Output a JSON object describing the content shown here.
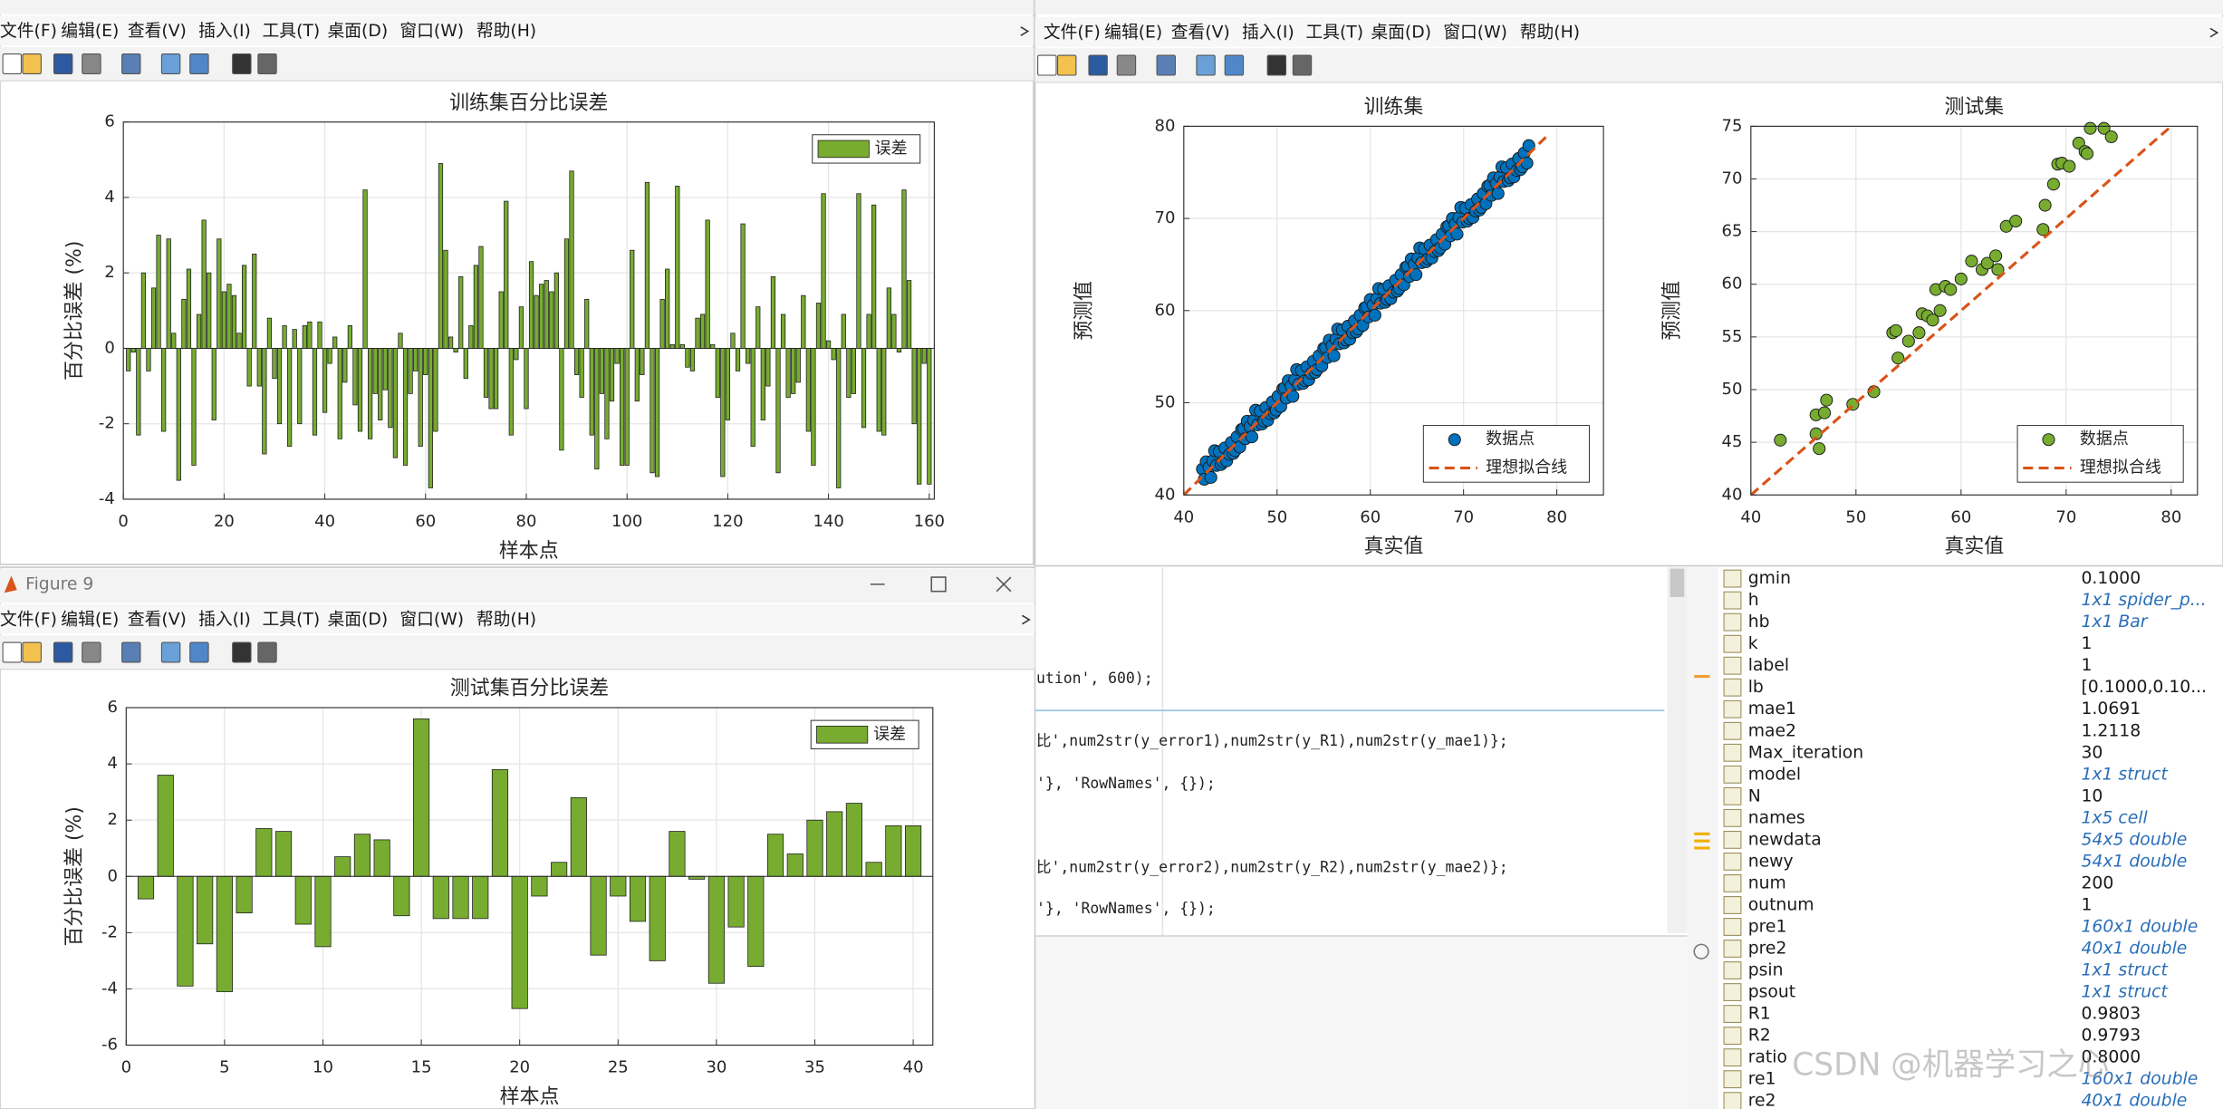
{
  "menu": [
    "文件(F)",
    "编辑(E)",
    "查看(V)",
    "插入(I)",
    "工具(T)",
    "桌面(D)",
    "窗口(W)",
    "帮助(H)"
  ],
  "figure9_title": "Figure 9",
  "chart_data": [
    {
      "type": "bar",
      "title": "训练集百分比误差",
      "xlabel": "样本点",
      "ylabel": "百分比误差 (%)",
      "x": [
        1,
        2,
        3,
        4,
        5,
        6,
        7,
        8,
        9,
        10,
        11,
        12,
        13,
        14,
        15,
        16,
        17,
        18,
        19,
        20,
        21,
        22,
        23,
        24,
        25,
        26,
        27,
        28,
        29,
        30,
        31,
        32,
        33,
        34,
        35,
        36,
        37,
        38,
        39,
        40,
        41,
        42,
        43,
        44,
        45,
        46,
        47,
        48,
        49,
        50,
        51,
        52,
        53,
        54,
        55,
        56,
        57,
        58,
        59,
        60,
        61,
        62,
        63,
        64,
        65,
        66,
        67,
        68,
        69,
        70,
        71,
        72,
        73,
        74,
        75,
        76,
        77,
        78,
        79,
        80,
        81,
        82,
        83,
        84,
        85,
        86,
        87,
        88,
        89,
        90,
        91,
        92,
        93,
        94,
        95,
        96,
        97,
        98,
        99,
        100,
        101,
        102,
        103,
        104,
        105,
        106,
        107,
        108,
        109,
        110,
        111,
        112,
        113,
        114,
        115,
        116,
        117,
        118,
        119,
        120,
        121,
        122,
        123,
        124,
        125,
        126,
        127,
        128,
        129,
        130,
        131,
        132,
        133,
        134,
        135,
        136,
        137,
        138,
        139,
        140,
        141,
        142,
        143,
        144,
        145,
        146,
        147,
        148,
        149,
        150,
        151,
        152,
        153,
        154,
        155,
        156,
        157,
        158,
        159,
        160
      ],
      "series": [
        {
          "name": "误差",
          "color": "#77AC30",
          "values": [
            -0.6,
            -0.1,
            -2.3,
            2.0,
            -0.6,
            1.6,
            3.0,
            -2.2,
            2.9,
            0.4,
            -3.5,
            1.3,
            2.1,
            -3.1,
            0.9,
            3.4,
            2.0,
            -1.9,
            2.9,
            1.5,
            1.7,
            1.4,
            0.4,
            2.2,
            -1.0,
            2.5,
            -1.0,
            -2.8,
            0.8,
            -0.8,
            -2.0,
            0.6,
            -2.6,
            0.5,
            -2.0,
            0.6,
            0.7,
            -2.3,
            0.7,
            -1.7,
            -0.4,
            0.3,
            -2.4,
            -0.9,
            0.6,
            -1.5,
            -2.2,
            4.2,
            -2.4,
            -1.2,
            -1.9,
            -1.1,
            -2.1,
            -2.9,
            0.4,
            -3.1,
            -1.2,
            -0.6,
            -2.6,
            -0.7,
            -3.7,
            -2.2,
            4.9,
            2.6,
            0.3,
            -0.1,
            1.9,
            -0.8,
            0.6,
            2.2,
            2.7,
            -1.3,
            -1.6,
            -1.6,
            1.5,
            3.9,
            -2.3,
            -0.3,
            1.1,
            -1.6,
            2.3,
            1.4,
            1.7,
            1.8,
            1.5,
            2.0,
            -2.7,
            2.9,
            4.7,
            -0.7,
            -1.3,
            1.3,
            -2.3,
            -3.2,
            -1.2,
            -2.4,
            -1.4,
            -0.4,
            -3.1,
            -3.1,
            2.6,
            -1.4,
            -0.7,
            4.4,
            -3.3,
            -3.4,
            1.3,
            2.1,
            0.1,
            4.3,
            0.1,
            -0.5,
            -0.6,
            0.8,
            0.9,
            3.4,
            0.1,
            -1.3,
            -3.4,
            -1.9,
            0.4,
            -0.6,
            3.3,
            -0.4,
            -2.6,
            1.1,
            -1.9,
            -1.0,
            1.9,
            -3.3,
            0.9,
            -1.3,
            -1.2,
            -0.9,
            1.4,
            -2.2,
            -3.1,
            1.2,
            4.1,
            0.2,
            -0.3,
            -3.7,
            0.9,
            -1.3,
            -1.2,
            4.1,
            -2.1,
            0.9,
            3.8,
            -2.2,
            -2.3,
            1.6,
            0.9,
            -0.1,
            4.2,
            1.8,
            -2.0,
            -3.6,
            -0.4,
            -3.6
          ]
        }
      ],
      "xlim": [
        0,
        161
      ],
      "ylim": [
        -4,
        6
      ],
      "xticks": [
        0,
        20,
        40,
        60,
        80,
        100,
        120,
        140,
        160
      ],
      "yticks": [
        -4,
        -2,
        0,
        2,
        4,
        6
      ],
      "grid": true,
      "legend": "northeast"
    },
    {
      "type": "scatter",
      "title": "训练集",
      "xlabel": "真实值",
      "ylabel": "预测值",
      "series": [
        {
          "name": "数据点",
          "color": "#0072BD",
          "marker": "circle",
          "x": [
            42,
            42.2,
            42.4,
            42.7,
            42.9,
            43.1,
            43.3,
            43.5,
            43.8,
            44,
            44.2,
            44.4,
            44.6,
            44.9,
            45.1,
            45.3,
            45.5,
            45.7,
            46,
            46.2,
            46.4,
            46.6,
            46.8,
            47.1,
            47.3,
            47.5,
            47.7,
            47.9,
            48.2,
            48.4,
            48.6,
            48.8,
            49,
            49.3,
            49.5,
            49.7,
            49.9,
            50.1,
            50.4,
            50.6,
            50.8,
            51,
            51.2,
            51.5,
            51.7,
            51.9,
            52.1,
            52.3,
            52.6,
            52.8,
            53,
            53.2,
            53.4,
            53.7,
            53.9,
            54.1,
            54.3,
            54.5,
            54.8,
            55,
            55.2,
            55.4,
            55.6,
            55.9,
            56.1,
            56.3,
            56.5,
            56.7,
            57,
            57.2,
            57.4,
            57.6,
            57.8,
            58.1,
            58.3,
            58.5,
            58.7,
            58.9,
            59.2,
            59.4,
            59.6,
            59.8,
            60,
            60.3,
            60.5,
            60.7,
            60.9,
            61.1,
            61.4,
            61.6,
            61.8,
            62,
            62.2,
            62.5,
            62.7,
            62.9,
            63.1,
            63.3,
            63.6,
            63.8,
            64,
            64.2,
            64.4,
            64.7,
            64.9,
            65.1,
            65.3,
            65.5,
            65.8,
            66,
            66.2,
            66.4,
            66.6,
            66.9,
            67.1,
            67.3,
            67.5,
            67.7,
            68,
            68.2,
            68.4,
            68.6,
            68.8,
            69.1,
            69.3,
            69.5,
            69.7,
            69.9,
            70.2,
            70.4,
            70.6,
            70.8,
            71,
            71.3,
            71.5,
            71.7,
            71.9,
            72.1,
            72.4,
            72.6,
            72.8,
            73,
            73.2,
            73.5,
            73.7,
            73.9,
            74.1,
            74.3,
            74.6,
            74.8,
            75,
            75.2,
            75.4,
            75.7,
            75.9,
            76.1,
            76.3,
            76.5,
            76.8,
            77
          ],
          "values": [
            42.8,
            41.7,
            43.6,
            43.0,
            41.9,
            43.7,
            44.8,
            43.2,
            44.7,
            43.3,
            43.6,
            45.1,
            43.7,
            44.4,
            45.7,
            44.5,
            44.8,
            46.3,
            45.2,
            47.1,
            47.2,
            46.1,
            48,
            47.4,
            46.3,
            48.1,
            49.2,
            47.6,
            49.1,
            47.7,
            48,
            49.5,
            48.1,
            48.8,
            50.1,
            48.9,
            49.2,
            50.7,
            49.6,
            51.5,
            51.6,
            50.5,
            52.4,
            51.8,
            50.7,
            52.5,
            53.6,
            52,
            53.5,
            52.1,
            52.4,
            53.9,
            52.5,
            53.2,
            54.5,
            53.3,
            53.6,
            55.1,
            54,
            55.9,
            56,
            54.9,
            56.8,
            56.2,
            55.1,
            56.9,
            58,
            56.4,
            57.9,
            56.5,
            56.8,
            58.3,
            56.9,
            57.6,
            58.9,
            57.7,
            58,
            59.5,
            58.4,
            60.3,
            60.4,
            59.3,
            61.2,
            60.6,
            59.5,
            61.3,
            62.4,
            60.8,
            62.3,
            60.9,
            61.2,
            62.7,
            61.3,
            62,
            63.3,
            62.1,
            62.4,
            63.9,
            62.8,
            64.7,
            64.8,
            63.7,
            65.6,
            65,
            63.9,
            65.7,
            66.8,
            65.2,
            66.7,
            65.3,
            65.6,
            67.1,
            65.7,
            66.4,
            67.7,
            66.5,
            66.8,
            68.3,
            67.2,
            69.1,
            69.2,
            68.1,
            70,
            69.4,
            68.3,
            70.1,
            71.2,
            69.6,
            71.1,
            69.7,
            70,
            71.5,
            70.1,
            70.8,
            72.1,
            70.9,
            71.2,
            72.7,
            71.6,
            73.5,
            73.6,
            72.5,
            74.4,
            73.8,
            72.7,
            74.5,
            75.6,
            74,
            75.5,
            74.1,
            74.4,
            75.9,
            74.5,
            75.2,
            76.5,
            75.3,
            75.6,
            77.1,
            76,
            77.9
          ]
        },
        {
          "name": "理想拟合线",
          "color": "#D95319",
          "style": "dashed",
          "x": [
            40,
            79
          ],
          "values": [
            40,
            79
          ]
        }
      ],
      "xlim": [
        40,
        85
      ],
      "ylim": [
        40,
        80
      ],
      "xticks": [
        40,
        50,
        60,
        70,
        80
      ],
      "yticks": [
        40,
        50,
        60,
        70,
        80
      ],
      "grid": true,
      "legend": "southeast"
    },
    {
      "type": "scatter",
      "title": "测试集",
      "xlabel": "真实值",
      "ylabel": "预测值",
      "series": [
        {
          "name": "数据点",
          "color": "#77AC30",
          "marker": "circle",
          "x": [
            42.8,
            46.2,
            46.2,
            46.5,
            47.0,
            47.2,
            49.7,
            51.7,
            53.5,
            53.8,
            54.0,
            55.0,
            56.0,
            56.3,
            56.8,
            57.3,
            57.6,
            58.0,
            58.5,
            59.0,
            60.0,
            61.0,
            62.0,
            62.5,
            63.3,
            63.5,
            64.3,
            65.2,
            67.8,
            68.0,
            68.8,
            69.2,
            69.6,
            70.3,
            71.2,
            71.8,
            72.0,
            72.3,
            73.6,
            74.3
          ],
          "values": [
            45.2,
            45.8,
            47.6,
            44.4,
            47.8,
            49.0,
            48.6,
            49.8,
            55.4,
            55.6,
            53.0,
            54.6,
            55.4,
            57.2,
            57.0,
            56.6,
            59.5,
            57.5,
            59.8,
            59.5,
            60.5,
            62.2,
            61.4,
            62.0,
            62.7,
            61.4,
            65.5,
            66.0,
            65.2,
            67.5,
            69.5,
            71.4,
            71.5,
            71.2,
            73.4,
            72.6,
            72.4,
            74.8,
            74.8,
            74.0
          ]
        },
        {
          "name": "理想拟合线",
          "color": "#D95319",
          "style": "dashed",
          "x": [
            40,
            80
          ],
          "values": [
            40,
            75
          ]
        }
      ],
      "xlim": [
        40,
        82.5
      ],
      "ylim": [
        40,
        75
      ],
      "xticks": [
        40,
        50,
        60,
        70,
        80
      ],
      "yticks": [
        40,
        45,
        50,
        55,
        60,
        65,
        70,
        75
      ],
      "grid": true,
      "legend": "southeast"
    },
    {
      "type": "bar",
      "title": "测试集百分比误差",
      "xlabel": "样本点",
      "ylabel": "百分比误差 (%)",
      "x": [
        1,
        2,
        3,
        4,
        5,
        6,
        7,
        8,
        9,
        10,
        11,
        12,
        13,
        14,
        15,
        16,
        17,
        18,
        19,
        20,
        21,
        22,
        23,
        24,
        25,
        26,
        27,
        28,
        29,
        30,
        31,
        32,
        33,
        34,
        35,
        36,
        37,
        38,
        39,
        40
      ],
      "series": [
        {
          "name": "误差",
          "color": "#77AC30",
          "values": [
            -0.8,
            3.6,
            -3.9,
            -2.4,
            -4.1,
            -1.3,
            1.7,
            1.6,
            -1.7,
            -2.5,
            0.7,
            1.5,
            1.3,
            -1.4,
            5.6,
            -1.5,
            -1.5,
            -1.5,
            3.8,
            -4.7,
            -0.7,
            0.5,
            2.8,
            -2.8,
            -0.7,
            -1.6,
            -3.0,
            1.6,
            -0.1,
            -3.8,
            -1.8,
            -3.2,
            1.5,
            0.8,
            2.0,
            2.3,
            2.6,
            0.5,
            1.8,
            1.8
          ]
        }
      ],
      "xlim": [
        0,
        41
      ],
      "ylim": [
        -6,
        6
      ],
      "xticks": [
        0,
        5,
        10,
        15,
        20,
        25,
        30,
        35,
        40
      ],
      "yticks": [
        -6,
        -4,
        -2,
        0,
        2,
        4,
        6
      ],
      "grid": true,
      "legend": "northeast"
    }
  ],
  "code": [
    "ution', 600);",
    "比',num2str(y_error1),num2str(y_R1),num2str(y_mae1)};",
    "'}, 'RowNames', {});",
    "比',num2str(y_error2),num2str(y_R2),num2str(y_mae2)};",
    "'}, 'RowNames', {});"
  ],
  "workspace": [
    [
      "gmin",
      "0.1000"
    ],
    [
      "h",
      "1x1 spider_p..."
    ],
    [
      "hb",
      "1x1 Bar"
    ],
    [
      "k",
      "1"
    ],
    [
      "label",
      "1"
    ],
    [
      "lb",
      "[0.1000,0.10..."
    ],
    [
      "mae1",
      "1.0691"
    ],
    [
      "mae2",
      "1.2118"
    ],
    [
      "Max_iteration",
      "30"
    ],
    [
      "model",
      "1x1 struct"
    ],
    [
      "N",
      "10"
    ],
    [
      "names",
      "1x5 cell"
    ],
    [
      "newdata",
      "54x5 double"
    ],
    [
      "newy",
      "54x1 double"
    ],
    [
      "num",
      "200"
    ],
    [
      "outnum",
      "1"
    ],
    [
      "pre1",
      "160x1 double"
    ],
    [
      "pre2",
      "40x1 double"
    ],
    [
      "psin",
      "1x1 struct"
    ],
    [
      "psout",
      "1x1 struct"
    ],
    [
      "R1",
      "0.9803"
    ],
    [
      "R2",
      "0.9793"
    ],
    [
      "ratio",
      "0.8000"
    ],
    [
      "re1",
      "160x1 double"
    ],
    [
      "re2",
      "40x1 double"
    ]
  ],
  "watermark": "CSDN @机器学习之心"
}
